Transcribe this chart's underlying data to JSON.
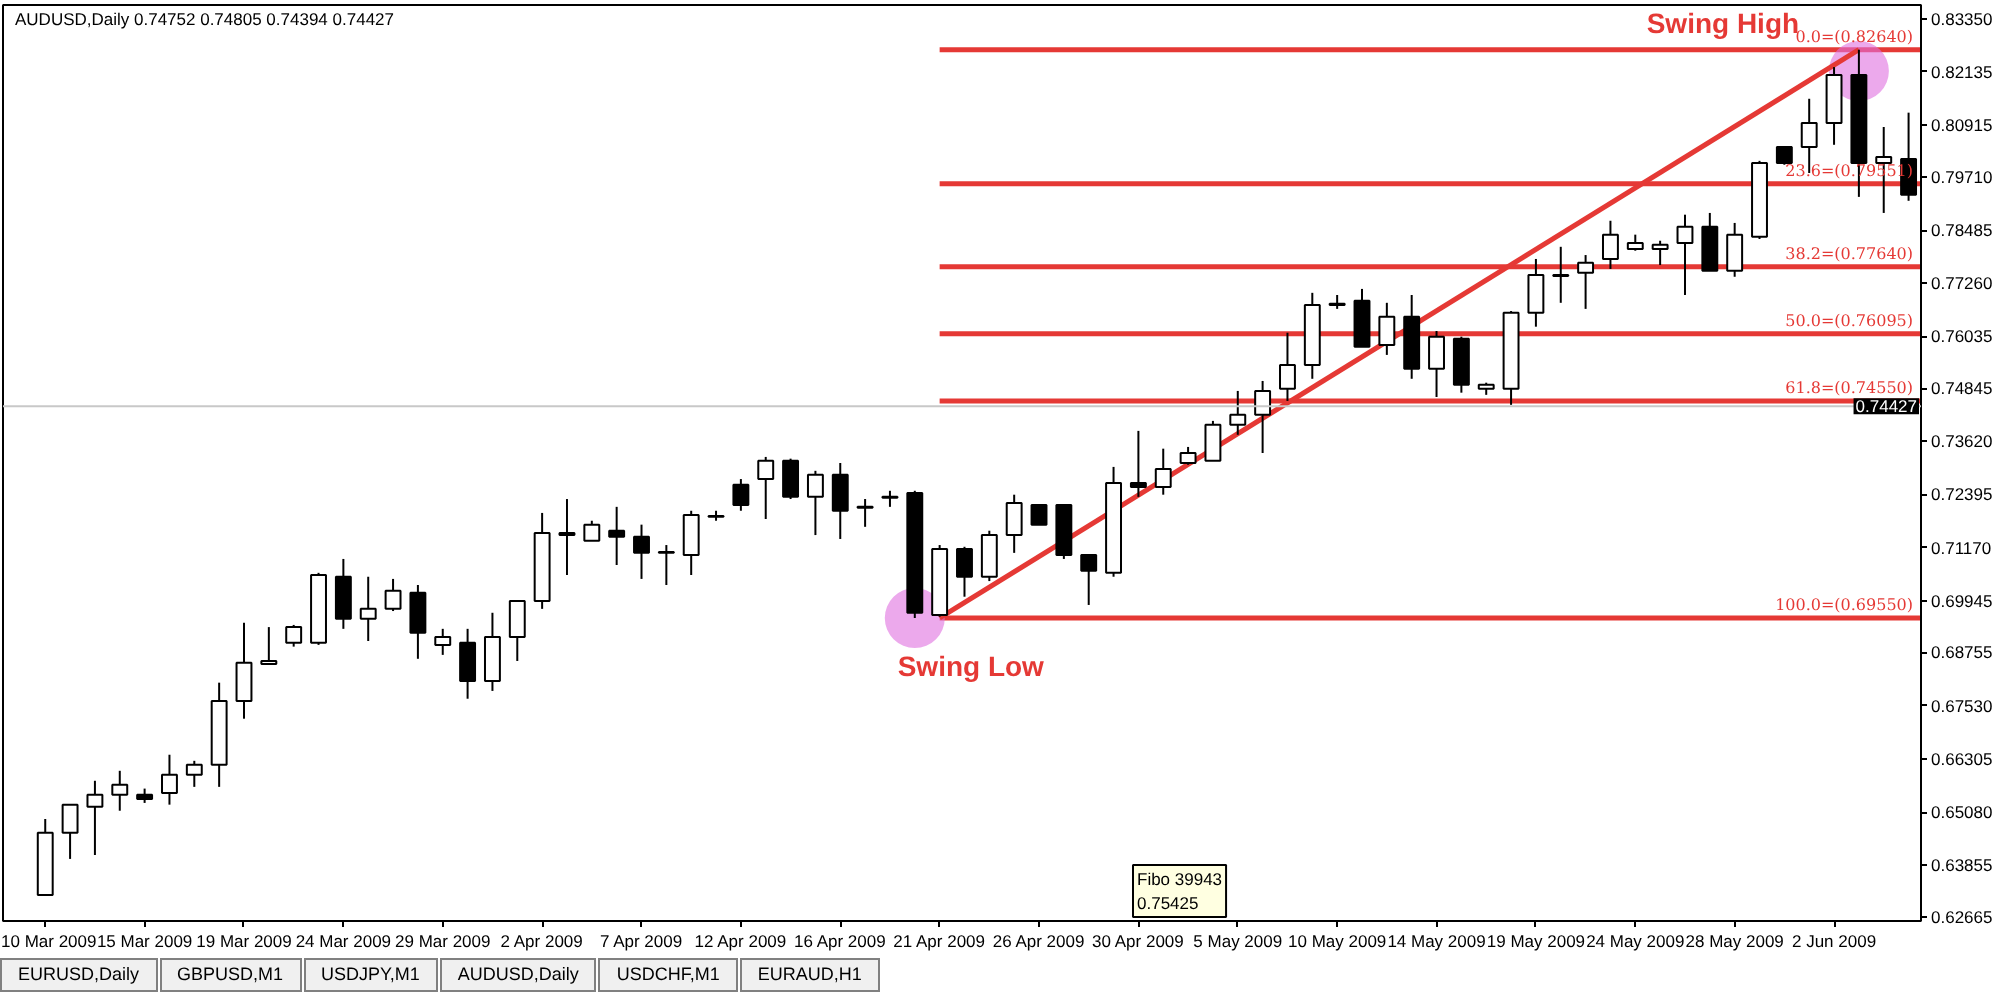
{
  "chart_data": {
    "type": "candlestick",
    "title": "AUDUSD,Daily  0.74752 0.74805 0.74394 0.74427",
    "categories": [
      "10 Mar 2009",
      null,
      null,
      null,
      "15 Mar 2009",
      null,
      null,
      null,
      "19 Mar 2009",
      null,
      null,
      null,
      "24 Mar 2009",
      null,
      null,
      null,
      "29 Mar 2009",
      null,
      null,
      null,
      "2 Apr 2009",
      null,
      null,
      null,
      "7 Apr 2009",
      null,
      null,
      null,
      "12 Apr 2009",
      null,
      null,
      null,
      "16 Apr 2009",
      null,
      null,
      null,
      "21 Apr 2009",
      null,
      null,
      null,
      "26 Apr 2009",
      null,
      null,
      null,
      "30 Apr 2009",
      null,
      null,
      null,
      "5 May 2009",
      null,
      null,
      null,
      "10 May 2009",
      null,
      null,
      null,
      "14 May 2009",
      null,
      null,
      null,
      "19 May 2009",
      null,
      null,
      null,
      "24 May 2009",
      null,
      null,
      null,
      "28 May 2009",
      null,
      null,
      null,
      "2 Jun 2009",
      null,
      null,
      null
    ],
    "ylim": [
      0.6257,
      0.8367
    ],
    "yticks": [
      {
        "value": 0.8335,
        "label": "0.83350"
      },
      {
        "value": 0.82135,
        "label": "0.82135"
      },
      {
        "value": 0.80915,
        "label": "0.80915"
      },
      {
        "value": 0.7971,
        "label": "0.79710"
      },
      {
        "value": 0.78485,
        "label": "0.78485"
      },
      {
        "value": 0.7726,
        "label": "0.77260"
      },
      {
        "value": 0.76035,
        "label": "0.76035"
      },
      {
        "value": 0.74845,
        "label": "0.74845"
      },
      {
        "value": 0.7362,
        "label": "0.73620"
      },
      {
        "value": 0.72395,
        "label": "0.72395"
      },
      {
        "value": 0.7117,
        "label": "0.71170"
      },
      {
        "value": 0.69945,
        "label": "0.69945"
      },
      {
        "value": 0.68755,
        "label": "0.68755"
      },
      {
        "value": 0.6753,
        "label": "0.67530"
      },
      {
        "value": 0.66305,
        "label": "0.66305"
      },
      {
        "value": 0.6508,
        "label": "0.65080"
      },
      {
        "value": 0.63855,
        "label": "0.63855"
      },
      {
        "value": 0.62665,
        "label": "0.62665"
      }
    ],
    "series": [
      {
        "type": "scatter",
        "color": "#e070e0",
        "marker": "circle",
        "values": [
          null,
          null,
          null,
          null,
          null,
          null,
          null,
          null,
          null,
          null,
          null,
          null,
          null,
          null,
          null,
          null,
          null,
          null,
          null,
          null,
          null,
          null,
          null,
          null,
          null,
          null,
          null,
          null,
          null,
          null,
          null,
          null,
          null,
          null,
          null,
          0.6955,
          null,
          null,
          null,
          null,
          null,
          null,
          null,
          null,
          null,
          null,
          null,
          null,
          null,
          null,
          null,
          null,
          null,
          null,
          null,
          null,
          null,
          null,
          null,
          null,
          null,
          null,
          null,
          null,
          null,
          null,
          null,
          null,
          null,
          null,
          null,
          null,
          null,
          0.8215,
          null,
          null
        ]
      },
      {
        "type": "line",
        "color": "#e53935",
        "values": [
          null,
          null,
          null,
          null,
          null,
          null,
          null,
          null,
          null,
          null,
          null,
          null,
          null,
          null,
          null,
          null,
          null,
          null,
          null,
          null,
          null,
          null,
          null,
          null,
          null,
          null,
          null,
          null,
          null,
          null,
          null,
          null,
          null,
          null,
          null,
          null,
          0.6955,
          null,
          null,
          null,
          null,
          null,
          null,
          null,
          null,
          null,
          null,
          null,
          null,
          null,
          null,
          null,
          null,
          null,
          null,
          null,
          null,
          null,
          null,
          null,
          null,
          null,
          null,
          null,
          null,
          null,
          null,
          null,
          null,
          null,
          null,
          null,
          null,
          0.8264,
          null,
          null
        ]
      },
      {
        "color": "#000000",
        "ohlc": [
          [
            0.6317,
            0.6492,
            0.6317,
            0.646
          ],
          [
            0.646,
            0.6525,
            0.64,
            0.6525
          ],
          [
            0.652,
            0.658,
            0.6409,
            0.6548
          ],
          [
            0.6548,
            0.6603,
            0.6511,
            0.6571
          ],
          [
            0.6548,
            0.6562,
            0.6529,
            0.6538
          ],
          [
            0.6552,
            0.664,
            0.6525,
            0.6594
          ],
          [
            0.6594,
            0.6626,
            0.6566,
            0.6617
          ],
          [
            0.6617,
            0.6806,
            0.6566,
            0.6764
          ],
          [
            0.6764,
            0.6944,
            0.6723,
            0.6852
          ],
          [
            0.6849,
            0.6934,
            0.6847,
            0.6856
          ],
          [
            0.6898,
            0.6939,
            0.6889,
            0.6934
          ],
          [
            0.6898,
            0.7059,
            0.6893,
            0.7054
          ],
          [
            0.705,
            0.7091,
            0.693,
            0.6953
          ],
          [
            0.6953,
            0.705,
            0.6902,
            0.6976
          ],
          [
            0.6976,
            0.7045,
            0.6971,
            0.7018
          ],
          [
            0.7013,
            0.7031,
            0.6861,
            0.6921
          ],
          [
            0.6893,
            0.693,
            0.687,
            0.6911
          ],
          [
            0.6898,
            0.693,
            0.6769,
            0.681
          ],
          [
            0.681,
            0.6967,
            0.6787,
            0.6911
          ],
          [
            0.6911,
            0.6994,
            0.6856,
            0.6994
          ],
          [
            0.6994,
            0.7197,
            0.6976,
            0.7151
          ],
          [
            0.7146,
            0.7229,
            0.7054,
            0.7151
          ],
          [
            0.7133,
            0.7179,
            0.7133,
            0.717
          ],
          [
            0.7156,
            0.7211,
            0.7077,
            0.7142
          ],
          [
            0.7142,
            0.717,
            0.7045,
            0.7105
          ],
          [
            0.7107,
            0.7123,
            0.7031,
            0.7105
          ],
          [
            0.71,
            0.7202,
            0.7054,
            0.7192
          ],
          [
            0.7188,
            0.7202,
            0.7179,
            0.719
          ],
          [
            0.7262,
            0.7275,
            0.7202,
            0.7215
          ],
          [
            0.7275,
            0.7326,
            0.7183,
            0.7317
          ],
          [
            0.7317,
            0.7322,
            0.7229,
            0.7234
          ],
          [
            0.7234,
            0.7294,
            0.7146,
            0.7285
          ],
          [
            0.7285,
            0.7312,
            0.7137,
            0.7202
          ],
          [
            0.7209,
            0.7229,
            0.7165,
            0.7211
          ],
          [
            0.7232,
            0.7248,
            0.7211,
            0.7234
          ],
          [
            0.7243,
            0.7248,
            0.6955,
            0.6967
          ],
          [
            0.6962,
            0.7123,
            0.6958,
            0.7114
          ],
          [
            0.7114,
            0.7119,
            0.7004,
            0.705
          ],
          [
            0.705,
            0.7156,
            0.704,
            0.7146
          ],
          [
            0.7146,
            0.7239,
            0.7105,
            0.722
          ],
          [
            0.7215,
            0.7215,
            0.717,
            0.717
          ],
          [
            0.7215,
            0.7215,
            0.7091,
            0.71
          ],
          [
            0.71,
            0.71,
            0.6985,
            0.7064
          ],
          [
            0.7059,
            0.7303,
            0.705,
            0.7266
          ],
          [
            0.7266,
            0.7386,
            0.7234,
            0.7257
          ],
          [
            0.7257,
            0.7345,
            0.7239,
            0.7298
          ],
          [
            0.7312,
            0.7349,
            0.7308,
            0.7335
          ],
          [
            0.7317,
            0.7409,
            0.7317,
            0.74
          ],
          [
            0.74,
            0.7478,
            0.7377,
            0.7423
          ],
          [
            0.7423,
            0.7501,
            0.7335,
            0.7478
          ],
          [
            0.7483,
            0.7612,
            0.7455,
            0.7538
          ],
          [
            0.7538,
            0.7704,
            0.7506,
            0.7676
          ],
          [
            0.7679,
            0.7699,
            0.7667,
            0.7676
          ],
          [
            0.7686,
            0.7713,
            0.758,
            0.758
          ],
          [
            0.7584,
            0.7681,
            0.7561,
            0.7649
          ],
          [
            0.7649,
            0.7699,
            0.7506,
            0.7529
          ],
          [
            0.7529,
            0.7616,
            0.7464,
            0.7603
          ],
          [
            0.7598,
            0.7603,
            0.7474,
            0.7492
          ],
          [
            0.7483,
            0.7497,
            0.7469,
            0.7492
          ],
          [
            0.7483,
            0.7662,
            0.7446,
            0.7658
          ],
          [
            0.7658,
            0.7782,
            0.7626,
            0.7745
          ],
          [
            0.7743,
            0.781,
            0.7681,
            0.7745
          ],
          [
            0.775,
            0.7791,
            0.7667,
            0.7773
          ],
          [
            0.7782,
            0.787,
            0.7759,
            0.7838
          ],
          [
            0.7805,
            0.7838,
            0.7801,
            0.7819
          ],
          [
            0.7805,
            0.7824,
            0.7768,
            0.7815
          ],
          [
            0.7819,
            0.7884,
            0.7699,
            0.7856
          ],
          [
            0.7856,
            0.7888,
            0.7755,
            0.7755
          ],
          [
            0.7755,
            0.7865,
            0.7741,
            0.7838
          ],
          [
            0.7833,
            0.8008,
            0.7828,
            0.8003
          ],
          [
            0.804,
            0.804,
            0.7999,
            0.8003
          ],
          [
            0.804,
            0.8151,
            0.798,
            0.8095
          ],
          [
            0.8095,
            0.8224,
            0.8045,
            0.8206
          ],
          [
            0.8206,
            0.8264,
            0.7925,
            0.8003
          ],
          [
            0.8003,
            0.8086,
            0.7888,
            0.8017
          ],
          [
            0.8012,
            0.8119,
            0.7916,
            0.793
          ]
        ]
      }
    ],
    "ref_lines": [
      {
        "axis": "y",
        "value": 0.74427,
        "label": "0.74427",
        "color": "#c8c8c8"
      },
      {
        "axis": "y",
        "value": 0.8264,
        "label": "0.0=(0.82640)",
        "color": "#e53935"
      },
      {
        "axis": "y",
        "value": 0.79551,
        "label": "23.6=(0.79551)",
        "color": "#e53935"
      },
      {
        "axis": "y",
        "value": 0.7764,
        "label": "38.2=(0.77640)",
        "color": "#e53935"
      },
      {
        "axis": "y",
        "value": 0.76095,
        "label": "50.0=(0.76095)",
        "color": "#e53935"
      },
      {
        "axis": "y",
        "value": 0.7455,
        "label": "61.8=(0.74550)",
        "color": "#e53935"
      },
      {
        "axis": "y",
        "value": 0.6955,
        "label": "100.0=(0.69550)",
        "color": "#e53935"
      }
    ],
    "annotations": [
      "Swing Low",
      "Swing High",
      "Fibo 39943\n0.75425",
      "EURUSD,Daily",
      "GBPUSD,M1",
      "USDJPY,M1",
      "AUDUSD,Daily",
      "USDCHF,M1",
      "EURAUD,H1"
    ]
  }
}
